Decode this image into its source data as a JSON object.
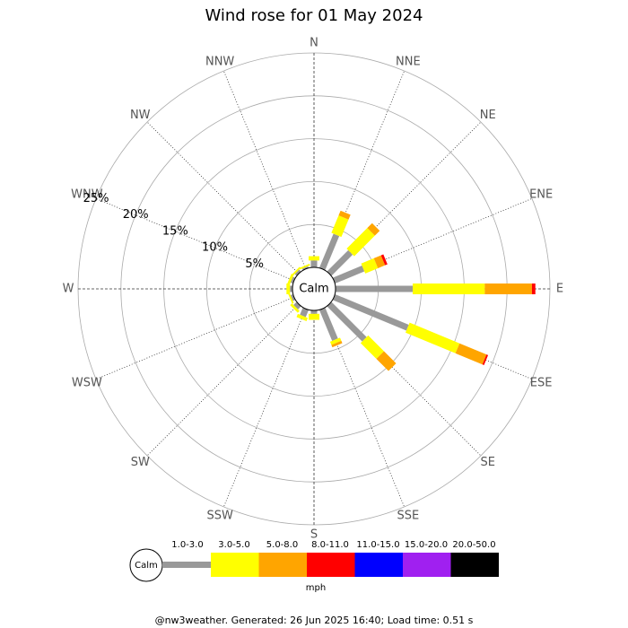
{
  "chart_data": {
    "type": "windrose",
    "title": "Wind rose for 01 May 2024",
    "directions": [
      "N",
      "NNE",
      "NE",
      "ENE",
      "E",
      "ESE",
      "SE",
      "SSE",
      "S",
      "SSW",
      "SW",
      "WSW",
      "W",
      "WNW",
      "NW",
      "NNW"
    ],
    "calm_label": "Calm",
    "series": [
      {
        "name": "1.0-3.0",
        "color": "#999999",
        "values": [
          0.8,
          4.3,
          3.5,
          3.7,
          9.0,
          9.3,
          5.8,
          3.9,
          0.4,
          0.9,
          0.5,
          0.3,
          0.3,
          0.3,
          0.3,
          0.2
        ]
      },
      {
        "name": "3.0-5.0",
        "color": "#ffff00",
        "values": [
          0.5,
          2.2,
          3.4,
          1.6,
          8.4,
          6.3,
          2.6,
          0.4,
          0.7,
          0.4,
          0.3,
          0.2,
          0.4,
          0.3,
          0.2,
          0.2
        ]
      },
      {
        "name": "5.0-8.0",
        "color": "#ffa500",
        "values": [
          0,
          0.6,
          0.8,
          0.9,
          5.5,
          3.4,
          2.0,
          0.3,
          0,
          0,
          0,
          0,
          0,
          0,
          0,
          0
        ]
      },
      {
        "name": "8.0-11.0",
        "color": "#ff0000",
        "values": [
          0,
          0,
          0,
          0.3,
          0.4,
          0.2,
          0,
          0,
          0,
          0,
          0,
          0,
          0,
          0,
          0,
          0
        ]
      },
      {
        "name": "11.0-15.0",
        "color": "#0000ff",
        "values": [
          0,
          0,
          0,
          0,
          0,
          0,
          0,
          0,
          0,
          0,
          0,
          0,
          0,
          0,
          0,
          0
        ]
      },
      {
        "name": "15.0-20.0",
        "color": "#a020f0",
        "values": [
          0,
          0,
          0,
          0,
          0,
          0,
          0,
          0,
          0,
          0,
          0,
          0,
          0,
          0,
          0,
          0
        ]
      },
      {
        "name": "20.0-50.0",
        "color": "#000000",
        "values": [
          0,
          0,
          0,
          0,
          0,
          0,
          0,
          0,
          0,
          0,
          0,
          0,
          0,
          0,
          0,
          0
        ]
      }
    ],
    "rlim": [
      0,
      25
    ],
    "rticks": [
      {
        "value": 5,
        "label": "5%"
      },
      {
        "value": 10,
        "label": "10%"
      },
      {
        "value": 15,
        "label": "15%"
      },
      {
        "value": 20,
        "label": "20%"
      },
      {
        "value": 25,
        "label": "25%"
      }
    ],
    "legend_unit": "mph",
    "footer": "@nw3weather. Generated: 26 Jun 2025 16:40; Load time: 0.51 s"
  }
}
